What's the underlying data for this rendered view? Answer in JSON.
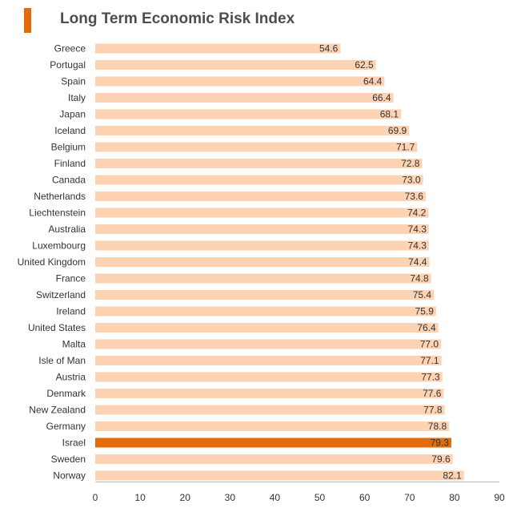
{
  "title": "Long Term Economic Risk Index",
  "colors": {
    "bar": "#fdd3b3",
    "highlight": "#e36c0a",
    "accent": "#e36c0a",
    "text": "#333333"
  },
  "chart_data": {
    "type": "bar",
    "orientation": "horizontal",
    "title": "Long Term Economic Risk Index",
    "xlabel": "",
    "ylabel": "",
    "xlim": [
      0,
      90
    ],
    "xticks": [
      0,
      10,
      20,
      30,
      40,
      50,
      60,
      70,
      80,
      90
    ],
    "grid": false,
    "highlight": "Israel",
    "categories": [
      "Greece",
      "Portugal",
      "Spain",
      "Italy",
      "Japan",
      "Iceland",
      "Belgium",
      "Finland",
      "Canada",
      "Netherlands",
      "Liechtenstein",
      "Australia",
      "Luxembourg",
      "United Kingdom",
      "France",
      "Switzerland",
      "Ireland",
      "United States",
      "Malta",
      "Isle of Man",
      "Austria",
      "Denmark",
      "New Zealand",
      "Germany",
      "Israel",
      "Sweden",
      "Norway"
    ],
    "values": [
      54.6,
      62.5,
      64.4,
      66.4,
      68.1,
      69.9,
      71.7,
      72.8,
      73.0,
      73.6,
      74.2,
      74.3,
      74.3,
      74.4,
      74.8,
      75.4,
      75.9,
      76.4,
      77.0,
      77.1,
      77.3,
      77.6,
      77.8,
      78.8,
      79.3,
      79.6,
      82.1
    ],
    "labels": [
      "54.6",
      "62.5",
      "64.4",
      "66.4",
      "68.1",
      "69.9",
      "71.7",
      "72.8",
      "73.0",
      "73.6",
      "74.2",
      "74.3",
      "74.3",
      "74.4",
      "74.8",
      "75.4",
      "75.9",
      "76.4",
      "77.0",
      "77.1",
      "77.3",
      "77.6",
      "77.8",
      "78.8",
      "79.3",
      "79.6",
      "82.1"
    ]
  }
}
